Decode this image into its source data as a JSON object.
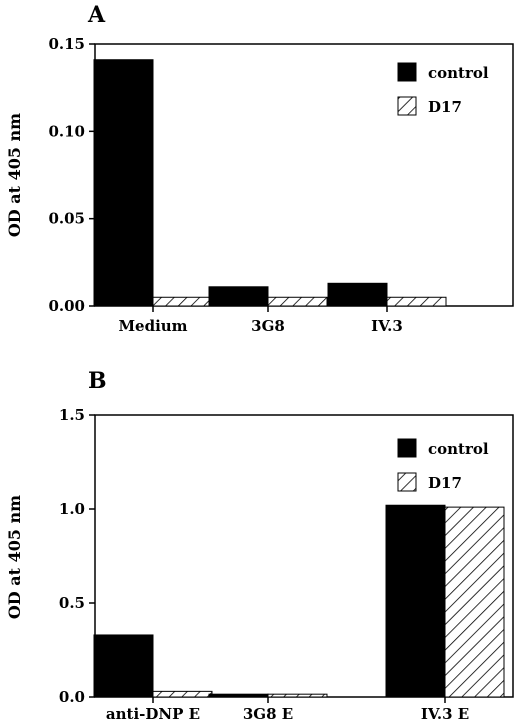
{
  "figure": {
    "panels": [
      {
        "letter": "A"
      },
      {
        "letter": "B"
      }
    ]
  },
  "colors": {
    "control": "#000000",
    "D17": "hatched",
    "axis": "#000000",
    "background": "#ffffff"
  },
  "chart_data": [
    {
      "type": "bar",
      "panel": "A",
      "title": "",
      "xlabel": "",
      "ylabel": "OD at 405 nm",
      "ylim": [
        0,
        0.15
      ],
      "yticks": [
        0,
        0.05,
        0.1,
        0.15
      ],
      "ytick_labels": [
        "0.00",
        "0.05",
        "0.10",
        "0.15"
      ],
      "categories": [
        "Medium",
        "3G8",
        "IV.3"
      ],
      "series": [
        {
          "name": "control",
          "fill": "solid",
          "values": [
            0.141,
            0.011,
            0.013
          ]
        },
        {
          "name": "D17",
          "fill": "hatched",
          "values": [
            0.005,
            0.005,
            0.005
          ]
        }
      ],
      "legend": "top-right",
      "grid": false
    },
    {
      "type": "bar",
      "panel": "B",
      "title": "",
      "xlabel": "",
      "ylabel": "OD at 405 nm",
      "ylim": [
        0,
        1.5
      ],
      "yticks": [
        0,
        0.5,
        1.0,
        1.5
      ],
      "ytick_labels": [
        "0.0",
        "0.5",
        "1.0",
        "1.5"
      ],
      "categories": [
        "anti-DNP E",
        "3G8 E",
        "IV.3 E"
      ],
      "series": [
        {
          "name": "control",
          "fill": "solid",
          "values": [
            0.33,
            0.015,
            1.02
          ]
        },
        {
          "name": "D17",
          "fill": "hatched",
          "values": [
            0.03,
            0.015,
            1.01
          ]
        }
      ],
      "legend": "top-right",
      "grid": false
    }
  ]
}
